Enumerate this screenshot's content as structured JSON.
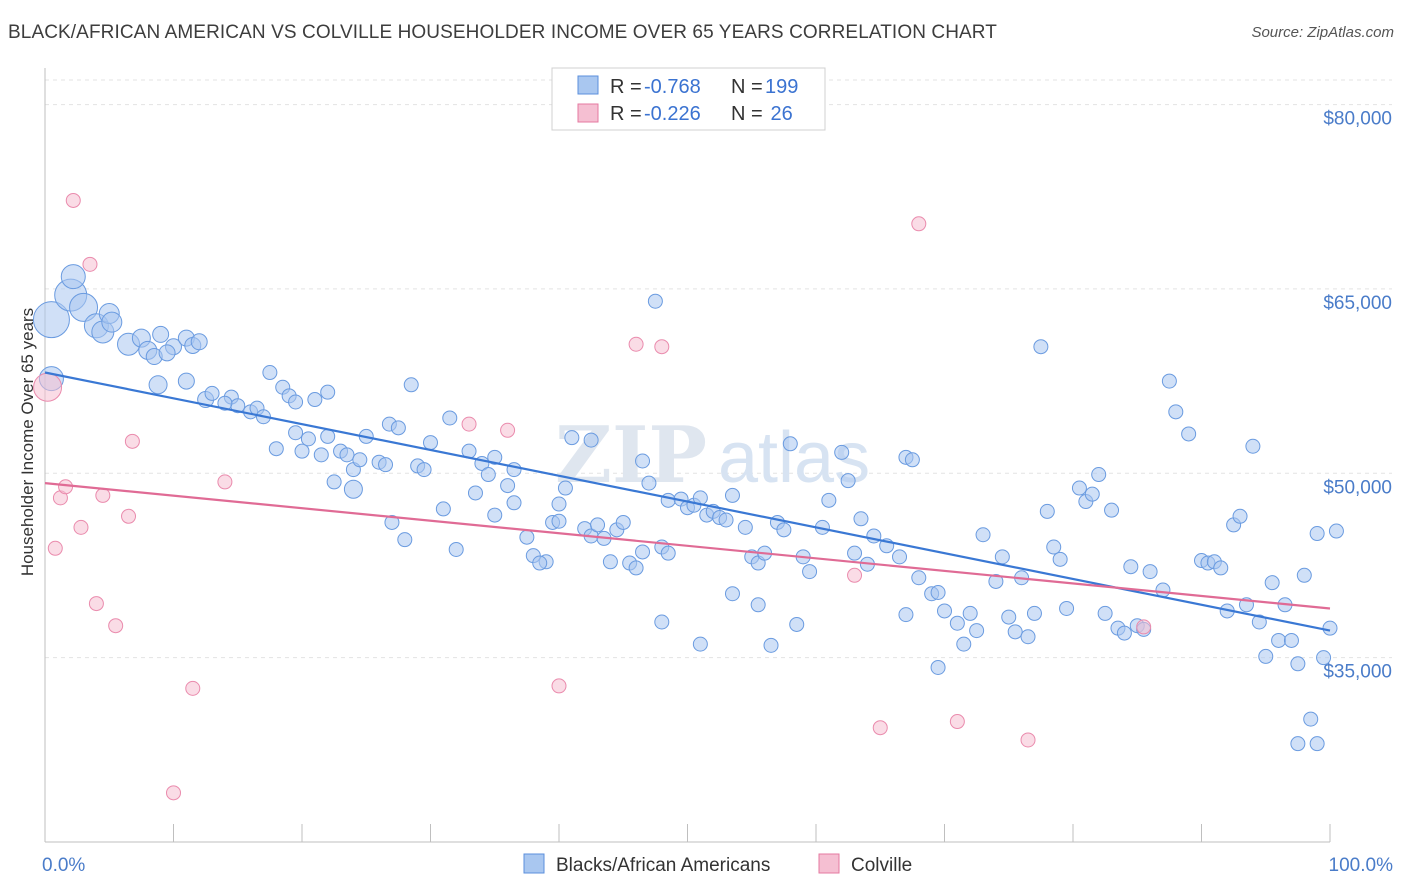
{
  "title": "BLACK/AFRICAN AMERICAN VS COLVILLE HOUSEHOLDER INCOME OVER 65 YEARS CORRELATION CHART",
  "source": "Source: ZipAtlas.com",
  "watermark": {
    "a": "ZIP",
    "b": "atlas"
  },
  "colors": {
    "blue": "#5b8fdc",
    "blue_fill": "#a9c7f0",
    "blue_line": "#3a78d4",
    "pink": "#e57aa0",
    "pink_fill": "#f5bfd2",
    "pink_line": "#e06b95"
  },
  "legend": {
    "r_label": "R =",
    "n_label": "N =",
    "rows": [
      {
        "r": "-0.768",
        "n": "199"
      },
      {
        "r": "-0.226",
        "n": " 26"
      }
    ]
  },
  "bottom_legend": [
    "Blacks/African Americans",
    "Colville"
  ],
  "chart_data": {
    "type": "scatter",
    "title": "BLACK/AFRICAN AMERICAN VS COLVILLE HOUSEHOLDER INCOME OVER 65 YEARS CORRELATION CHART",
    "xlabel": "",
    "ylabel": "Householder Income Over 65 years",
    "xlim": [
      0,
      100
    ],
    "ylim": [
      20000,
      82000
    ],
    "y_ticks": [
      35000,
      50000,
      65000,
      80000
    ],
    "y_tick_labels": [
      "$35,000",
      "$50,000",
      "$65,000",
      "$80,000"
    ],
    "x_tick_labels": [
      "0.0%",
      "100.0%"
    ],
    "grid": true,
    "legend_placement": "top-center",
    "series": [
      {
        "name": "Blacks/African Americans",
        "color": "#5b8fdc",
        "trend": {
          "x": [
            0,
            100
          ],
          "y": [
            58200,
            37200
          ]
        },
        "points": [
          [
            0.5,
            62500,
            18
          ],
          [
            0.5,
            57700,
            12
          ],
          [
            2,
            64500,
            16
          ],
          [
            2.2,
            66000,
            12
          ],
          [
            3,
            63500,
            14
          ],
          [
            4,
            62000,
            12
          ],
          [
            4.5,
            61500,
            11
          ],
          [
            5,
            63000,
            10
          ],
          [
            5.2,
            62300,
            10
          ],
          [
            6.5,
            60500,
            11
          ],
          [
            7.5,
            61000,
            9
          ],
          [
            8,
            60000,
            9
          ],
          [
            8.5,
            59500,
            8
          ],
          [
            9,
            61300,
            8
          ],
          [
            10,
            60300,
            8
          ],
          [
            11,
            61000,
            8
          ],
          [
            11.5,
            60400,
            8
          ],
          [
            12,
            60700,
            8
          ],
          [
            9.5,
            59800,
            8
          ],
          [
            8.8,
            57200,
            9
          ],
          [
            11,
            57500,
            8
          ],
          [
            12.5,
            56000,
            8
          ],
          [
            13,
            56500,
            7
          ],
          [
            14.5,
            56200,
            7
          ],
          [
            15,
            55500,
            7
          ],
          [
            16,
            55000,
            7
          ],
          [
            16.5,
            55300,
            7
          ],
          [
            17,
            54600,
            7
          ],
          [
            17.5,
            58200,
            7
          ],
          [
            18.5,
            57000,
            7
          ],
          [
            19,
            56300,
            7
          ],
          [
            19.5,
            55800,
            7
          ],
          [
            21,
            56000,
            7
          ],
          [
            22,
            56600,
            7
          ],
          [
            14,
            55700,
            7
          ],
          [
            18,
            52000,
            7
          ],
          [
            19.5,
            53300,
            7
          ],
          [
            20,
            51800,
            7
          ],
          [
            20.5,
            52800,
            7
          ],
          [
            22,
            53000,
            7
          ],
          [
            21.5,
            51500,
            7
          ],
          [
            22.5,
            49300,
            7
          ],
          [
            23,
            51800,
            7
          ],
          [
            23.5,
            51500,
            7
          ],
          [
            24,
            50300,
            7
          ],
          [
            24.5,
            51100,
            7
          ],
          [
            24,
            48700,
            9
          ],
          [
            25,
            53000,
            7
          ],
          [
            26,
            50900,
            7
          ],
          [
            26.5,
            50700,
            7
          ],
          [
            26.8,
            54000,
            7
          ],
          [
            27.5,
            53700,
            7
          ],
          [
            28.5,
            57200,
            7
          ],
          [
            29,
            50600,
            7
          ],
          [
            29.5,
            50300,
            7
          ],
          [
            30,
            52500,
            7
          ],
          [
            31.5,
            54500,
            7
          ],
          [
            33,
            51800,
            7
          ],
          [
            33.5,
            48400,
            7
          ],
          [
            34,
            50800,
            7
          ],
          [
            34.5,
            49900,
            7
          ],
          [
            35,
            51300,
            7
          ],
          [
            36,
            49000,
            7
          ],
          [
            36.5,
            50300,
            7
          ],
          [
            31,
            47100,
            7
          ],
          [
            32,
            43800,
            7
          ],
          [
            28,
            44600,
            7
          ],
          [
            27,
            46000,
            7
          ],
          [
            35,
            46600,
            7
          ],
          [
            37.5,
            44800,
            7
          ],
          [
            38,
            43300,
            7
          ],
          [
            39,
            42800,
            7
          ],
          [
            39.5,
            46000,
            7
          ],
          [
            40,
            47500,
            7
          ],
          [
            40.5,
            48800,
            7
          ],
          [
            41,
            52900,
            7
          ],
          [
            42,
            45500,
            7
          ],
          [
            42.5,
            44900,
            7
          ],
          [
            43,
            45800,
            7
          ],
          [
            43.5,
            44700,
            7
          ],
          [
            44.5,
            45400,
            7
          ],
          [
            45,
            46000,
            7
          ],
          [
            45.5,
            42700,
            7
          ],
          [
            46,
            42300,
            7
          ],
          [
            46.5,
            43600,
            7
          ],
          [
            46.5,
            51000,
            7
          ],
          [
            47,
            49200,
            7
          ],
          [
            48,
            44000,
            7
          ],
          [
            48.5,
            43500,
            7
          ],
          [
            48.5,
            47800,
            7
          ],
          [
            49.5,
            47900,
            7
          ],
          [
            50,
            47200,
            7
          ],
          [
            50.5,
            47400,
            7
          ],
          [
            51,
            48000,
            7
          ],
          [
            51.5,
            46600,
            7
          ],
          [
            52,
            46900,
            7
          ],
          [
            52.5,
            46400,
            7
          ],
          [
            53,
            46200,
            7
          ],
          [
            53.5,
            48200,
            7
          ],
          [
            54.5,
            45600,
            7
          ],
          [
            55,
            43200,
            7
          ],
          [
            55.5,
            42700,
            7
          ],
          [
            56,
            43500,
            7
          ],
          [
            57,
            46000,
            7
          ],
          [
            57.5,
            45400,
            7
          ],
          [
            58,
            52400,
            7
          ],
          [
            59,
            43200,
            7
          ],
          [
            59.5,
            42000,
            7
          ],
          [
            60.5,
            45600,
            7
          ],
          [
            61,
            47800,
            7
          ],
          [
            62,
            51700,
            7
          ],
          [
            62.5,
            49400,
            7
          ],
          [
            63,
            43500,
            7
          ],
          [
            63.5,
            46300,
            7
          ],
          [
            64,
            42600,
            7
          ],
          [
            64.5,
            44900,
            7
          ],
          [
            65.5,
            44100,
            7
          ],
          [
            66.5,
            43200,
            7
          ],
          [
            67,
            51300,
            7
          ],
          [
            67.5,
            51100,
            7
          ],
          [
            68,
            41500,
            7
          ],
          [
            69,
            40200,
            7
          ],
          [
            69.5,
            40300,
            7
          ],
          [
            70,
            38800,
            7
          ],
          [
            71,
            37800,
            7
          ],
          [
            71.5,
            36100,
            7
          ],
          [
            72.5,
            37200,
            7
          ],
          [
            73,
            45000,
            7
          ],
          [
            74,
            41200,
            7
          ],
          [
            74.5,
            43200,
            7
          ],
          [
            75,
            38300,
            7
          ],
          [
            75.5,
            37100,
            7
          ],
          [
            76,
            41500,
            7
          ],
          [
            77,
            38600,
            7
          ],
          [
            77.5,
            60300,
            7
          ],
          [
            78,
            46900,
            7
          ],
          [
            78.5,
            44000,
            7
          ],
          [
            79,
            43000,
            7
          ],
          [
            79.5,
            39000,
            7
          ],
          [
            80.5,
            48800,
            7
          ],
          [
            81,
            47700,
            7
          ],
          [
            81.5,
            48300,
            7
          ],
          [
            82,
            49900,
            7
          ],
          [
            82.5,
            38600,
            7
          ],
          [
            83,
            47000,
            7
          ],
          [
            83.5,
            37400,
            7
          ],
          [
            84,
            37000,
            7
          ],
          [
            84.5,
            42400,
            7
          ],
          [
            85,
            37600,
            7
          ],
          [
            85.5,
            37300,
            7
          ],
          [
            86,
            42000,
            7
          ],
          [
            87,
            40500,
            7
          ],
          [
            87.5,
            57500,
            7
          ],
          [
            88,
            55000,
            7
          ],
          [
            89,
            53200,
            7
          ],
          [
            90,
            42900,
            7
          ],
          [
            90.5,
            42700,
            7
          ],
          [
            91,
            42800,
            7
          ],
          [
            91.5,
            42300,
            7
          ],
          [
            92,
            38800,
            7
          ],
          [
            92.5,
            45800,
            7
          ],
          [
            93,
            46500,
            7
          ],
          [
            93.5,
            39300,
            7
          ],
          [
            94,
            52200,
            7
          ],
          [
            94.5,
            37900,
            7
          ],
          [
            95,
            35100,
            7
          ],
          [
            95.5,
            41100,
            7
          ],
          [
            96,
            36400,
            7
          ],
          [
            96.5,
            39300,
            7
          ],
          [
            97,
            36400,
            7
          ],
          [
            97.5,
            34500,
            7
          ],
          [
            98,
            41700,
            7
          ],
          [
            98.5,
            30000,
            7
          ],
          [
            99,
            45100,
            7
          ],
          [
            99,
            28000,
            7
          ],
          [
            99.5,
            35000,
            7
          ],
          [
            100,
            37400,
            7
          ],
          [
            100.5,
            45300,
            7
          ],
          [
            97.5,
            28000,
            7
          ],
          [
            51,
            36100,
            7
          ],
          [
            53.5,
            40200,
            7
          ],
          [
            55.5,
            39300,
            7
          ],
          [
            56.5,
            36000,
            7
          ],
          [
            58.5,
            37700,
            7
          ],
          [
            67,
            38500,
            7
          ],
          [
            69.5,
            34200,
            7
          ],
          [
            76.5,
            36700,
            7
          ],
          [
            72,
            38600,
            7
          ],
          [
            48,
            37900,
            7
          ],
          [
            44,
            42800,
            7
          ],
          [
            47.5,
            64000,
            7
          ],
          [
            42.5,
            52700,
            7
          ],
          [
            36.5,
            47600,
            7
          ],
          [
            38.5,
            42700,
            7
          ],
          [
            40,
            46100,
            7
          ]
        ]
      },
      {
        "name": "Colville",
        "color": "#e57aa0",
        "trend": {
          "x": [
            0,
            100
          ],
          "y": [
            49200,
            39000
          ]
        },
        "points": [
          [
            0.2,
            57000,
            14
          ],
          [
            0.8,
            43900,
            7
          ],
          [
            1.2,
            48000,
            7
          ],
          [
            1.6,
            48900,
            7
          ],
          [
            2.2,
            72200,
            7
          ],
          [
            2.8,
            45600,
            7
          ],
          [
            3.5,
            67000,
            7
          ],
          [
            4,
            39400,
            7
          ],
          [
            4.5,
            48200,
            7
          ],
          [
            5.5,
            37600,
            7
          ],
          [
            6.5,
            46500,
            7
          ],
          [
            6.8,
            52600,
            7
          ],
          [
            10,
            24000,
            7
          ],
          [
            11.5,
            32500,
            7
          ],
          [
            14,
            49300,
            7
          ],
          [
            33,
            54000,
            7
          ],
          [
            36,
            53500,
            7
          ],
          [
            40,
            32700,
            7
          ],
          [
            46,
            60500,
            7
          ],
          [
            48,
            60300,
            7
          ],
          [
            63,
            41700,
            7
          ],
          [
            65,
            29300,
            7
          ],
          [
            68,
            70300,
            7
          ],
          [
            71,
            29800,
            7
          ],
          [
            76.5,
            28300,
            7
          ],
          [
            85.5,
            37500,
            7
          ]
        ]
      }
    ]
  }
}
